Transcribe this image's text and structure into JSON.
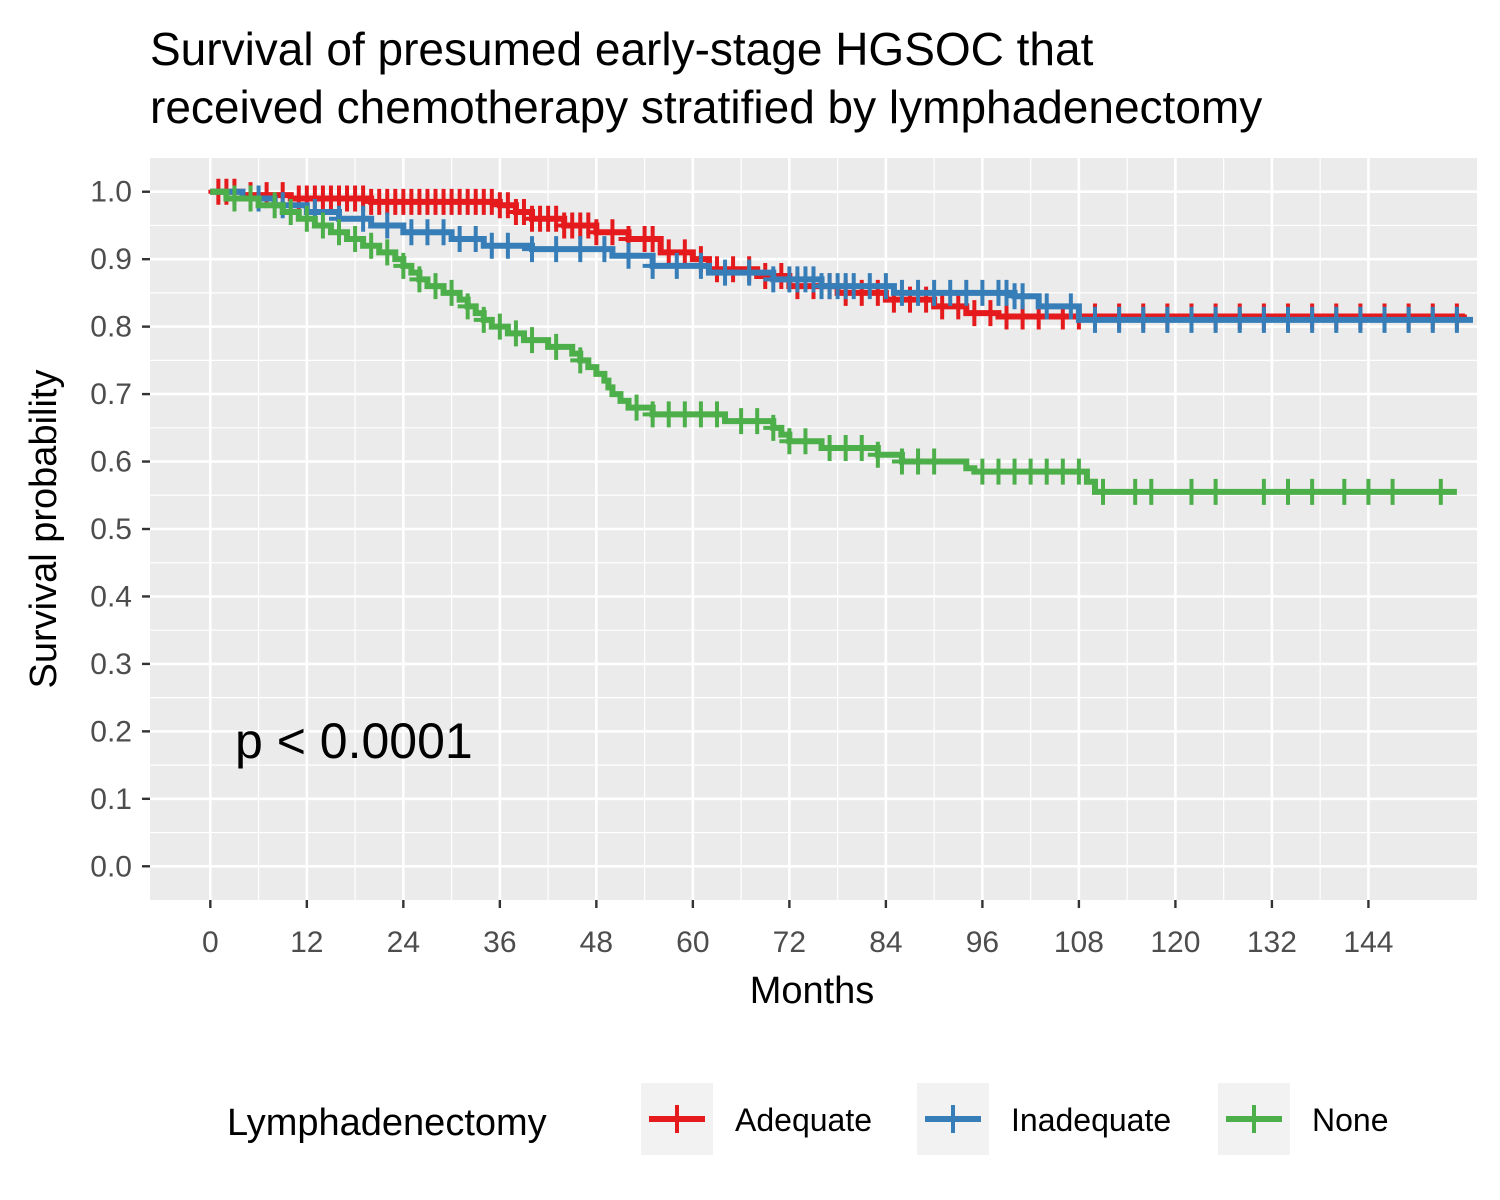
{
  "chart_data": {
    "type": "line",
    "title_lines": [
      "Survival of presumed early-stage HGSOC that",
      "received chemotherapy stratified by lymphadenectomy"
    ],
    "xlabel": "Months",
    "ylabel": "Survival probability",
    "xlim": [
      -7.5,
      157.5
    ],
    "ylim": [
      -0.05,
      1.05
    ],
    "x_ticks": [
      0,
      12,
      24,
      36,
      48,
      60,
      72,
      84,
      96,
      108,
      120,
      132,
      144
    ],
    "y_ticks": [
      0.0,
      0.1,
      0.2,
      0.3,
      0.4,
      0.5,
      0.6,
      0.7,
      0.8,
      0.9,
      1.0
    ],
    "y_tick_labels": [
      "0.0",
      "0.1",
      "0.2",
      "0.3",
      "0.4",
      "0.5",
      "0.6",
      "0.7",
      "0.8",
      "0.9",
      "1.0"
    ],
    "grid": true,
    "annotation": "p < 0.0001",
    "legend": {
      "title": "Lymphadenectomy",
      "position": "bottom"
    },
    "series": [
      {
        "name": "Adequate",
        "color": "#e41a1c",
        "steps": [
          [
            0,
            1.0
          ],
          [
            4,
            0.995
          ],
          [
            10,
            0.99
          ],
          [
            20,
            0.985
          ],
          [
            36,
            0.98
          ],
          [
            38,
            0.97
          ],
          [
            40,
            0.96
          ],
          [
            44,
            0.95
          ],
          [
            48,
            0.94
          ],
          [
            52,
            0.93
          ],
          [
            56,
            0.91
          ],
          [
            60,
            0.9
          ],
          [
            62,
            0.885
          ],
          [
            68,
            0.875
          ],
          [
            72,
            0.86
          ],
          [
            78,
            0.85
          ],
          [
            84,
            0.84
          ],
          [
            90,
            0.83
          ],
          [
            94,
            0.82
          ],
          [
            98,
            0.815
          ],
          [
            156,
            0.815
          ]
        ],
        "censor_x": [
          1,
          2,
          3,
          5,
          7,
          9,
          11,
          12,
          13,
          14,
          15,
          16,
          17,
          18,
          19,
          20,
          21,
          22,
          23,
          24,
          25,
          26,
          27,
          28,
          29,
          30,
          31,
          32,
          33,
          34,
          35,
          36,
          37,
          38,
          39,
          40,
          41,
          42,
          43,
          44,
          45,
          46,
          47,
          48,
          50,
          52,
          54,
          55,
          57,
          59,
          61,
          63,
          65,
          67,
          69,
          71,
          73,
          75,
          77,
          79,
          81,
          83,
          85,
          87,
          89,
          91,
          93,
          95,
          97,
          99,
          101,
          103,
          106,
          108,
          110,
          113,
          116,
          119,
          122,
          125,
          128,
          131,
          134,
          137,
          140,
          143,
          146,
          149,
          152,
          155
        ]
      },
      {
        "name": "Inadequate",
        "color": "#377eb8",
        "steps": [
          [
            0,
            1.0
          ],
          [
            4,
            0.99
          ],
          [
            8,
            0.98
          ],
          [
            12,
            0.97
          ],
          [
            16,
            0.96
          ],
          [
            20,
            0.95
          ],
          [
            24,
            0.94
          ],
          [
            30,
            0.93
          ],
          [
            34,
            0.92
          ],
          [
            40,
            0.915
          ],
          [
            50,
            0.905
          ],
          [
            55,
            0.89
          ],
          [
            62,
            0.88
          ],
          [
            70,
            0.87
          ],
          [
            76,
            0.86
          ],
          [
            85,
            0.85
          ],
          [
            100,
            0.845
          ],
          [
            103,
            0.83
          ],
          [
            108,
            0.81
          ],
          [
            157,
            0.81
          ]
        ],
        "censor_x": [
          6,
          9,
          13,
          16,
          19,
          22,
          25,
          27,
          29,
          31,
          33,
          35,
          37,
          40,
          43,
          46,
          49,
          52,
          55,
          58,
          61,
          64,
          67,
          70,
          72,
          73,
          74,
          75,
          76,
          77,
          78,
          79,
          80,
          82,
          84,
          86,
          88,
          90,
          92,
          94,
          96,
          98,
          99,
          100,
          101,
          104,
          107,
          110,
          113,
          116,
          119,
          122,
          125,
          128,
          131,
          134,
          137,
          140,
          143,
          146,
          149,
          152,
          155
        ]
      },
      {
        "name": "None",
        "color": "#4daf4a",
        "steps": [
          [
            0,
            1.0
          ],
          [
            2,
            0.99
          ],
          [
            6,
            0.98
          ],
          [
            9,
            0.97
          ],
          [
            11,
            0.96
          ],
          [
            13,
            0.95
          ],
          [
            15,
            0.94
          ],
          [
            17,
            0.93
          ],
          [
            19,
            0.92
          ],
          [
            21,
            0.91
          ],
          [
            23,
            0.9
          ],
          [
            24,
            0.89
          ],
          [
            25,
            0.88
          ],
          [
            26,
            0.87
          ],
          [
            27,
            0.86
          ],
          [
            29,
            0.85
          ],
          [
            31,
            0.84
          ],
          [
            32,
            0.83
          ],
          [
            33,
            0.82
          ],
          [
            34,
            0.81
          ],
          [
            35,
            0.8
          ],
          [
            37,
            0.79
          ],
          [
            39,
            0.78
          ],
          [
            42,
            0.77
          ],
          [
            45,
            0.76
          ],
          [
            46,
            0.75
          ],
          [
            47,
            0.74
          ],
          [
            48,
            0.73
          ],
          [
            49,
            0.72
          ],
          [
            49.5,
            0.71
          ],
          [
            50,
            0.7
          ],
          [
            51,
            0.69
          ],
          [
            52,
            0.68
          ],
          [
            55,
            0.67
          ],
          [
            64,
            0.66
          ],
          [
            70,
            0.65
          ],
          [
            71,
            0.64
          ],
          [
            72,
            0.63
          ],
          [
            76,
            0.62
          ],
          [
            83,
            0.61
          ],
          [
            86,
            0.6
          ],
          [
            94,
            0.59
          ],
          [
            95,
            0.585
          ],
          [
            109,
            0.57
          ],
          [
            110,
            0.555
          ],
          [
            155,
            0.555
          ]
        ],
        "censor_x": [
          3,
          5,
          8,
          10,
          12,
          14,
          16,
          18,
          20,
          22,
          24,
          26,
          28,
          30,
          32,
          34,
          36,
          38,
          40,
          43,
          46,
          53,
          55,
          57,
          59,
          61,
          63,
          66,
          68,
          70,
          72,
          74,
          77,
          79,
          81,
          83,
          86,
          88,
          90,
          96,
          98,
          100,
          102,
          104,
          106,
          108,
          111,
          115,
          117,
          122,
          125,
          131,
          134,
          137,
          141,
          144,
          147,
          153
        ]
      }
    ]
  }
}
